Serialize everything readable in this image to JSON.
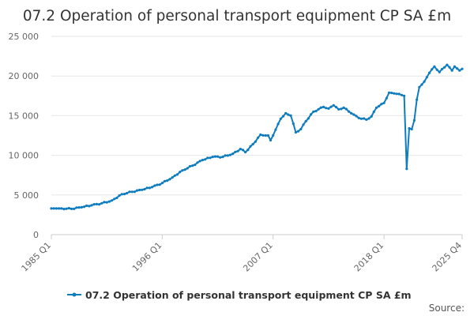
{
  "chart_data": {
    "type": "line",
    "title": "07.2 Operation of personal transport equipment CP SA £m",
    "xlabel": "",
    "ylabel": "",
    "ylim": [
      0,
      25000
    ],
    "yticks": [
      0,
      5000,
      10000,
      15000,
      20000,
      25000
    ],
    "ytick_labels": [
      "0",
      "5 000",
      "10 000",
      "15 000",
      "20 000",
      "25 000"
    ],
    "xtick_labels": [
      "1985 Q1",
      "1996 Q1",
      "2007 Q1",
      "2018 Q1",
      "2025 Q4"
    ],
    "grid": true,
    "legend_position": "bottom",
    "series": [
      {
        "name": "07.2 Operation of personal transport equipment CP SA £m",
        "color": "#0e7cbf",
        "points": [
          [
            "1985 Q1",
            3300
          ],
          [
            "1986 Q1",
            3300
          ],
          [
            "1987 Q1",
            3250
          ],
          [
            "1988 Q1",
            3450
          ],
          [
            "1989 Q1",
            3700
          ],
          [
            "1990 Q1",
            3950
          ],
          [
            "1991 Q1",
            4300
          ],
          [
            "1992 Q1",
            5100
          ],
          [
            "1993 Q1",
            5400
          ],
          [
            "1994 Q1",
            5650
          ],
          [
            "1995 Q1",
            6000
          ],
          [
            "1996 Q1",
            6500
          ],
          [
            "1997 Q1",
            7200
          ],
          [
            "1998 Q1",
            8100
          ],
          [
            "1999 Q1",
            8700
          ],
          [
            "2000 Q1",
            9400
          ],
          [
            "2001 Q1",
            9800
          ],
          [
            "2002 Q1",
            9800
          ],
          [
            "2003 Q1",
            10200
          ],
          [
            "2003 Q4",
            10800
          ],
          [
            "2004 Q2",
            10400
          ],
          [
            "2005 Q1",
            11400
          ],
          [
            "2005 Q4",
            12600
          ],
          [
            "2006 Q3",
            12500
          ],
          [
            "2006 Q4",
            11900
          ],
          [
            "2007 Q1",
            12500
          ],
          [
            "2007 Q4",
            14600
          ],
          [
            "2008 Q2",
            15300
          ],
          [
            "2008 Q4",
            15000
          ],
          [
            "2009 Q2",
            12900
          ],
          [
            "2009 Q4",
            13300
          ],
          [
            "2010 Q2",
            14300
          ],
          [
            "2011 Q1",
            15500
          ],
          [
            "2012 Q1",
            16100
          ],
          [
            "2012 Q3",
            15900
          ],
          [
            "2013 Q1",
            16300
          ],
          [
            "2013 Q3",
            15800
          ],
          [
            "2014 Q1",
            16000
          ],
          [
            "2014 Q4",
            15300
          ],
          [
            "2015 Q3",
            14700
          ],
          [
            "2016 Q2",
            14500
          ],
          [
            "2016 Q4",
            14900
          ],
          [
            "2017 Q2",
            16000
          ],
          [
            "2018 Q1",
            16600
          ],
          [
            "2018 Q3",
            17900
          ],
          [
            "2019 Q1",
            17800
          ],
          [
            "2019 Q4",
            17600
          ],
          [
            "2020 Q1",
            17500
          ],
          [
            "2020 Q2",
            8300
          ],
          [
            "2020 Q3",
            13400
          ],
          [
            "2020 Q4",
            13300
          ],
          [
            "2021 Q1",
            14400
          ],
          [
            "2021 Q2",
            17000
          ],
          [
            "2021 Q3",
            18600
          ],
          [
            "2022 Q1",
            19300
          ],
          [
            "2022 Q3",
            20400
          ],
          [
            "2023 Q1",
            21200
          ],
          [
            "2023 Q3",
            20500
          ],
          [
            "2024 Q1",
            21100
          ],
          [
            "2024 Q2",
            21400
          ],
          [
            "2024 Q4",
            20700
          ],
          [
            "2025 Q1",
            21200
          ],
          [
            "2025 Q3",
            20700
          ],
          [
            "2025 Q4",
            20900
          ]
        ]
      }
    ]
  },
  "legend": {
    "label": "07.2 Operation of personal transport equipment CP SA £m"
  },
  "source_label": "Source:"
}
